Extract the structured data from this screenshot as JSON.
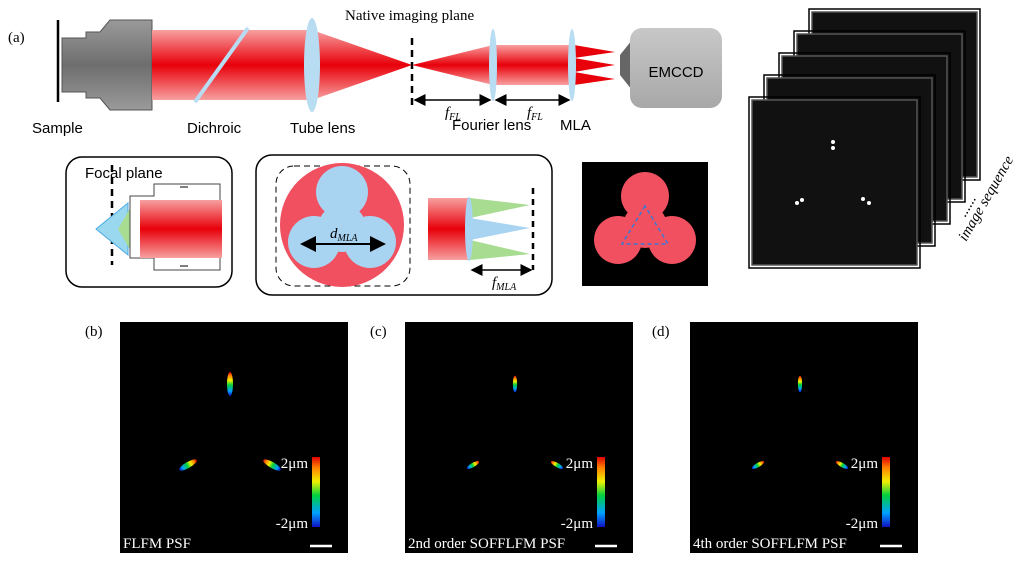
{
  "panel_a": {
    "label": "(a)",
    "native_imaging_plane": "Native imaging plane",
    "components": {
      "sample": "Sample",
      "dichroic": "Dichroic",
      "tube_lens": "Tube lens",
      "fourier_lens": "Fourier lens",
      "mla": "MLA",
      "camera": "EMCCD"
    },
    "fourier_focal_length": {
      "symbol": "f",
      "subscript": "FL"
    },
    "focal_plane": "Focal plane",
    "mla_diameter": {
      "symbol": "d",
      "subscript": "MLA"
    },
    "mla_focal_length": {
      "symbol": "f",
      "subscript": "MLA"
    },
    "sequence_dots": "......",
    "sequence_label": "image sequence"
  },
  "psf_panels": [
    {
      "label": "(b)",
      "caption": "FLFM PSF",
      "colorbar_max": "2μm",
      "colorbar_min": "-2μm"
    },
    {
      "label": "(c)",
      "caption": "2nd order SOFFLFM PSF",
      "colorbar_max": "2μm",
      "colorbar_min": "-2μm"
    },
    {
      "label": "(d)",
      "caption": "4th order SOFFLFM PSF",
      "colorbar_max": "2μm",
      "colorbar_min": "-2μm"
    }
  ]
}
